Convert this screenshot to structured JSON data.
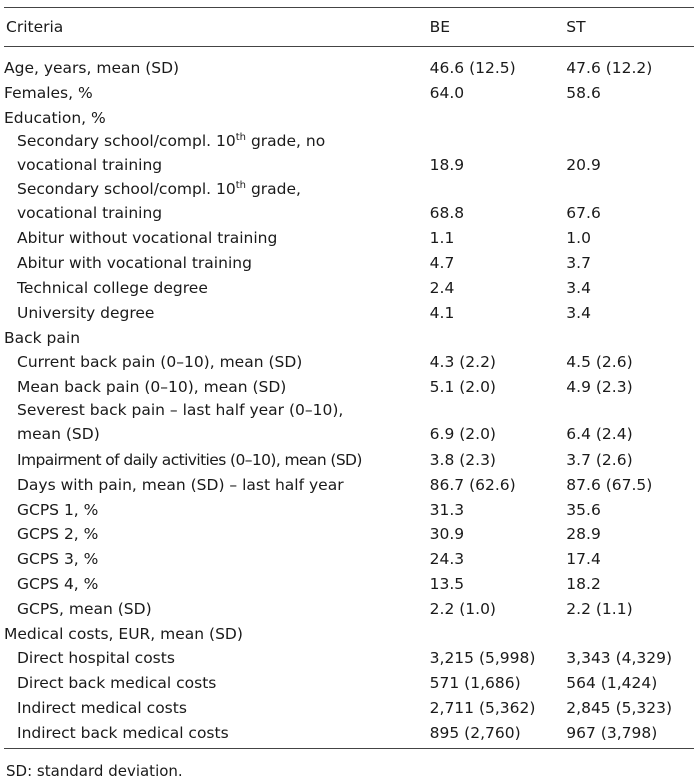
{
  "table": {
    "headers": [
      "Criteria",
      "BE",
      "ST"
    ],
    "rows": [
      {
        "label": "Age, years, mean (SD)",
        "be": "46.6 (12.5)",
        "st": "47.6 (12.2)",
        "level": 0
      },
      {
        "label": "Females, %",
        "be": "64.0",
        "st": "58.6",
        "level": 0
      },
      {
        "label": "Education, %",
        "be": "",
        "st": "",
        "level": 0
      },
      {
        "label_line1_pre": "Secondary school/compl. 10",
        "label_line1_sup": "th",
        "label_line1_post": " grade, no",
        "label_line2": "vocational training",
        "be": "18.9",
        "st": "20.9",
        "level": 1
      },
      {
        "label_line1_pre": "Secondary school/compl. 10",
        "label_line1_sup": "th",
        "label_line1_post": " grade,",
        "label_line2": "vocational training",
        "be": "68.8",
        "st": "67.6",
        "level": 1
      },
      {
        "label": "Abitur without vocational training",
        "be": "1.1",
        "st": "1.0",
        "level": 1
      },
      {
        "label": "Abitur with vocational training",
        "be": "4.7",
        "st": "3.7",
        "level": 1
      },
      {
        "label": "Technical college degree",
        "be": "2.4",
        "st": "3.4",
        "level": 1
      },
      {
        "label": "University degree",
        "be": "4.1",
        "st": "3.4",
        "level": 1
      },
      {
        "label": "Back pain",
        "be": "",
        "st": "",
        "level": 0
      },
      {
        "label": "Current back pain (0–10), mean (SD)",
        "be": "4.3 (2.2)",
        "st": "4.5 (2.6)",
        "level": 1
      },
      {
        "label": "Mean back pain (0–10), mean (SD)",
        "be": "5.1 (2.0)",
        "st": "4.9 (2.3)",
        "level": 1
      },
      {
        "label_line1": "Severest back pain – last half year (0–10),",
        "label_line2": "mean (SD)",
        "be": "6.9 (2.0)",
        "st": "6.4 (2.4)",
        "level": 1
      },
      {
        "label": "Impairment of daily activities (0–10), mean (SD)",
        "be": "3.8 (2.3)",
        "st": "3.7 (2.6)",
        "level": 1
      },
      {
        "label": "Days with pain, mean (SD) – last half year",
        "be": "86.7 (62.6)",
        "st": "87.6 (67.5)",
        "level": 1
      },
      {
        "label": "GCPS 1, %",
        "be": "31.3",
        "st": "35.6",
        "level": 1
      },
      {
        "label": "GCPS 2, %",
        "be": "30.9",
        "st": "28.9",
        "level": 1
      },
      {
        "label": "GCPS 3, %",
        "be": "24.3",
        "st": "17.4",
        "level": 1
      },
      {
        "label": "GCPS 4, %",
        "be": "13.5",
        "st": "18.2",
        "level": 1
      },
      {
        "label": "GCPS, mean (SD)",
        "be": "2.2 (1.0)",
        "st": "2.2 (1.1)",
        "level": 1
      },
      {
        "label": "Medical costs, EUR, mean (SD)",
        "be": "",
        "st": "",
        "level": 0
      },
      {
        "label": "Direct hospital costs",
        "be": "3,215 (5,998)",
        "st": "3,343 (4,329)",
        "level": 1
      },
      {
        "label": "Direct back medical costs",
        "be": "571 (1,686)",
        "st": "564 (1,424)",
        "level": 1
      },
      {
        "label": "Indirect medical costs",
        "be": "2,711 (5,362)",
        "st": "2,845 (5,323)",
        "level": 1
      },
      {
        "label": "Indirect back medical costs",
        "be": "895 (2,760)",
        "st": "967 (3,798)",
        "level": 1
      }
    ]
  },
  "footnote": "SD: standard deviation."
}
